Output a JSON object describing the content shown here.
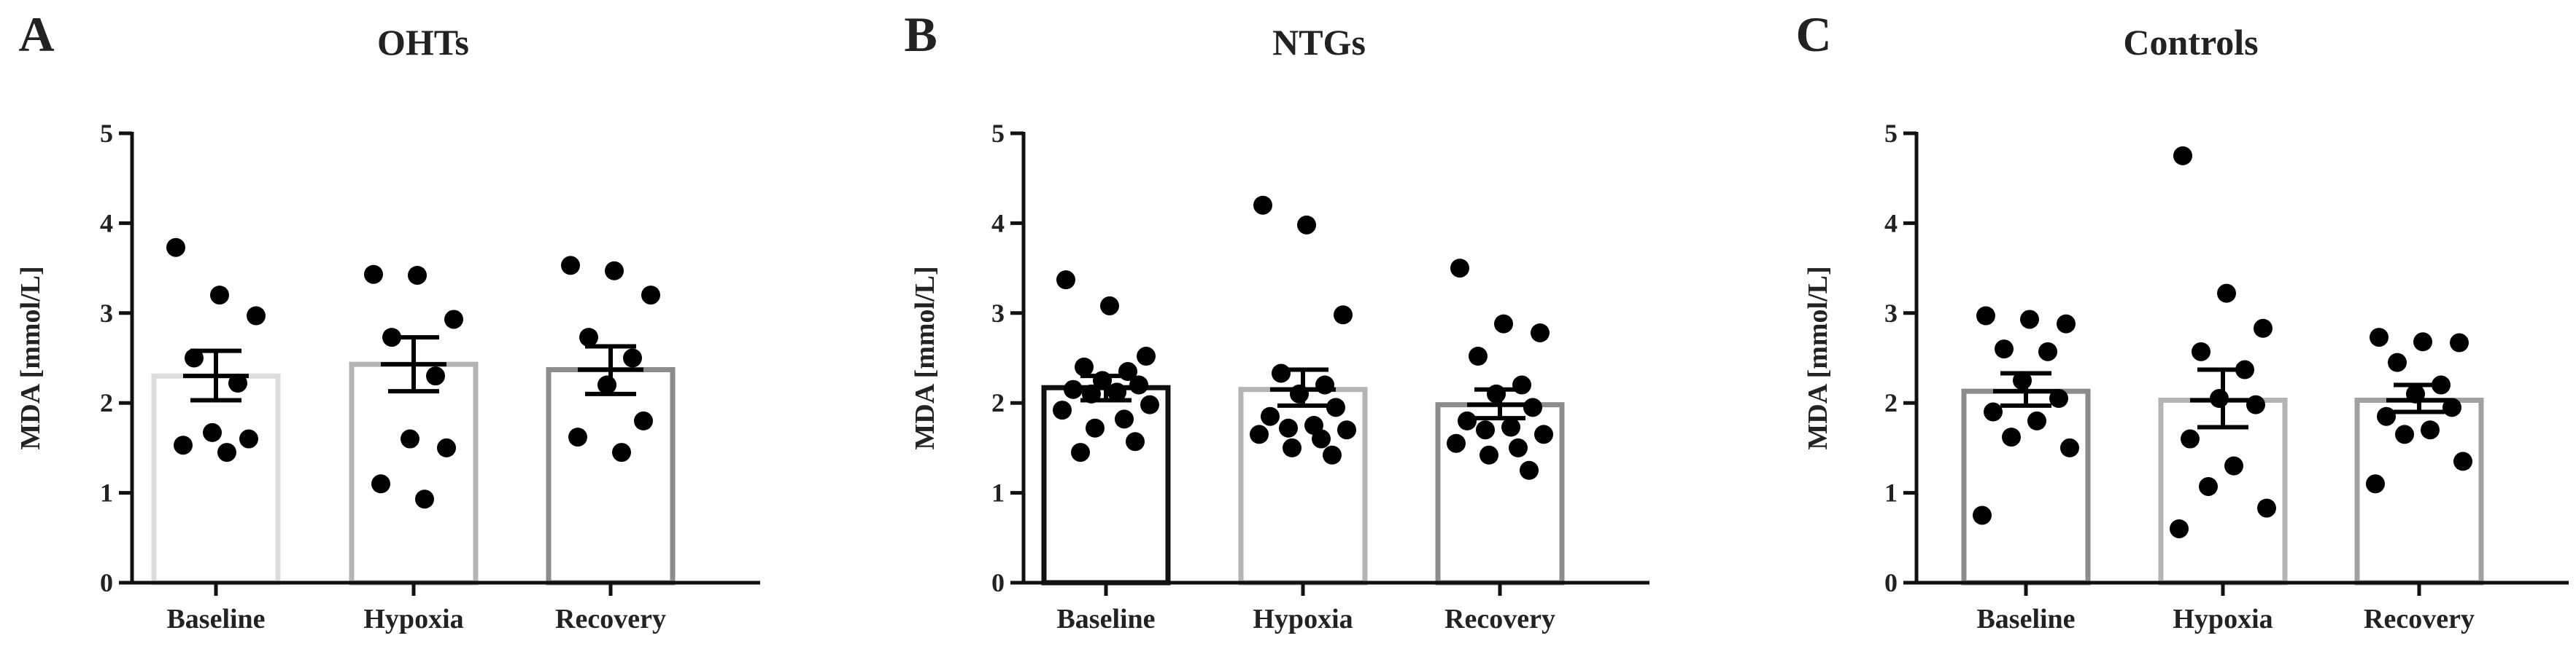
{
  "chart_data": [
    {
      "type": "bar",
      "panel": "A",
      "title": "OHTs",
      "xlabel": "",
      "ylabel": "MDA [mmol/L]",
      "ylim": [
        0,
        5
      ],
      "yticks": [
        "0",
        "1",
        "2",
        "3",
        "4",
        "5"
      ],
      "categories": [
        "Baseline",
        "Hypoxia",
        "Recovery"
      ],
      "values": [
        2.3,
        2.43,
        2.37
      ],
      "sem_low": [
        2.03,
        2.13,
        2.1
      ],
      "sem_high": [
        2.58,
        2.73,
        2.63
      ],
      "bar_colors": [
        "#dcdcdc",
        "#b4b4b4",
        "#8c8c8c"
      ],
      "points": [
        [
          3.73,
          3.2,
          2.97,
          2.5,
          2.22,
          1.67,
          1.6,
          1.53,
          1.45
        ],
        [
          3.43,
          3.42,
          2.93,
          2.73,
          2.3,
          1.6,
          1.5,
          1.1,
          0.93
        ],
        [
          3.53,
          3.47,
          3.2,
          2.73,
          2.5,
          2.2,
          1.8,
          1.62,
          1.45
        ]
      ]
    },
    {
      "type": "bar",
      "panel": "B",
      "title": "NTGs",
      "xlabel": "",
      "ylabel": "MDA [mmol/L]",
      "ylim": [
        0,
        5
      ],
      "yticks": [
        "0",
        "1",
        "2",
        "3",
        "4",
        "5"
      ],
      "categories": [
        "Baseline",
        "Hypoxia",
        "Recovery"
      ],
      "values": [
        2.17,
        2.15,
        1.98
      ],
      "sem_low": [
        2.03,
        1.97,
        1.83
      ],
      "sem_high": [
        2.3,
        2.37,
        2.15
      ],
      "bar_colors": [
        "#111111",
        "#b4b4b4",
        "#8c8c8c"
      ],
      "points": [
        [
          3.37,
          3.08,
          2.52,
          2.4,
          2.35,
          2.25,
          2.2,
          2.15,
          2.12,
          2.1,
          1.98,
          1.92,
          1.82,
          1.72,
          1.57,
          1.45
        ],
        [
          4.2,
          3.98,
          2.98,
          2.33,
          2.2,
          2.1,
          1.95,
          1.85,
          1.75,
          1.72,
          1.7,
          1.65,
          1.6,
          1.5,
          1.42
        ],
        [
          3.5,
          2.88,
          2.78,
          2.52,
          2.2,
          2.1,
          1.95,
          1.8,
          1.73,
          1.7,
          1.65,
          1.55,
          1.5,
          1.42,
          1.25
        ]
      ]
    },
    {
      "type": "bar",
      "panel": "C",
      "title": "Controls",
      "xlabel": "",
      "ylabel": "MDA [mmol/L]",
      "ylim": [
        0,
        5
      ],
      "yticks": [
        "0",
        "1",
        "2",
        "3",
        "4",
        "5"
      ],
      "categories": [
        "Baseline",
        "Hypoxia",
        "Recovery"
      ],
      "values": [
        2.13,
        2.03,
        2.03
      ],
      "sem_low": [
        1.97,
        1.73,
        1.9
      ],
      "sem_high": [
        2.33,
        2.37,
        2.2
      ],
      "bar_colors": [
        "#8c8c8c",
        "#b4b4b4",
        "#a0a0a0"
      ],
      "points": [
        [
          2.97,
          2.93,
          2.88,
          2.6,
          2.57,
          2.25,
          2.05,
          1.9,
          1.8,
          1.62,
          1.5,
          0.75
        ],
        [
          4.75,
          3.22,
          2.83,
          2.57,
          2.37,
          2.05,
          1.98,
          1.6,
          1.3,
          1.07,
          0.83,
          0.6
        ],
        [
          2.73,
          2.68,
          2.67,
          2.45,
          2.2,
          2.1,
          1.95,
          1.85,
          1.7,
          1.65,
          1.35,
          1.1
        ]
      ]
    }
  ]
}
